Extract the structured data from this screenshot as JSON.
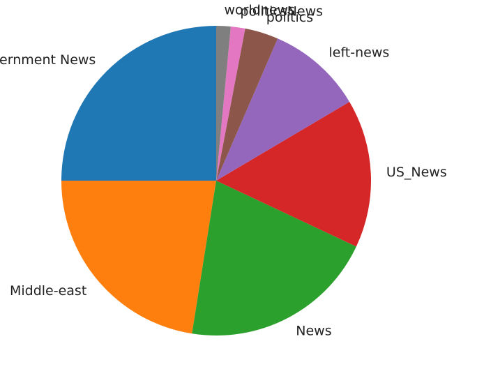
{
  "chart_data": {
    "type": "pie",
    "title": "",
    "categories": [
      "Government News",
      "Middle-east",
      "News",
      "US_News",
      "left-news",
      "politics",
      "politicsNews",
      "worldnews"
    ],
    "values": [
      25.0,
      22.5,
      20.5,
      15.5,
      10.0,
      3.5,
      1.5,
      1.5
    ],
    "colors": [
      "#1f77b4",
      "#ff7f0e",
      "#2ca02c",
      "#d62728",
      "#9467bd",
      "#8c564b",
      "#e377c2",
      "#7f7f7f"
    ],
    "start_angle_deg": 90,
    "direction": "counterclockwise",
    "legend": "none"
  }
}
